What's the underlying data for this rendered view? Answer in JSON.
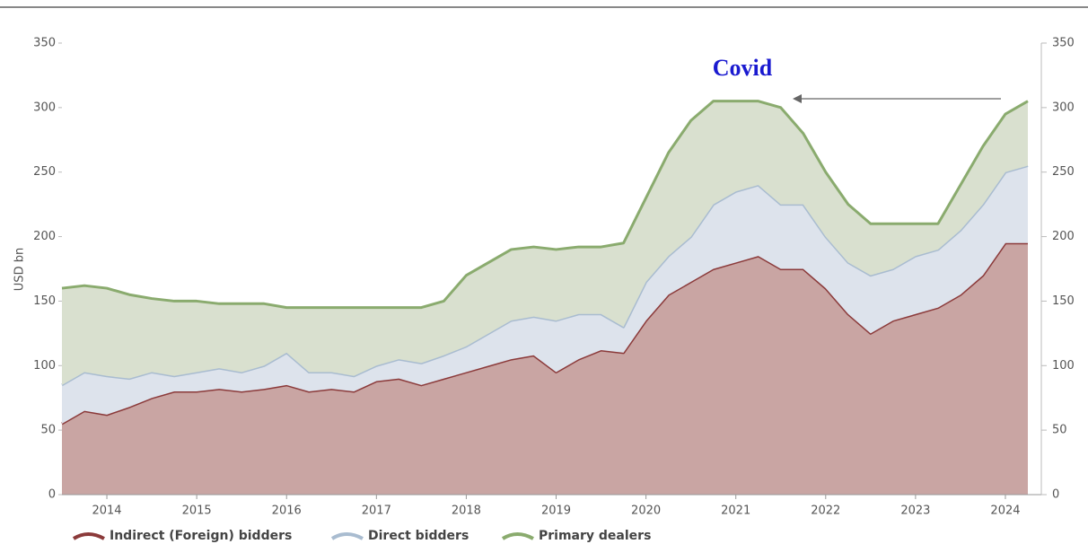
{
  "chart_data": {
    "type": "stacked_area",
    "ylabel": "USD bn",
    "annotation": "Covid",
    "x": [
      2013.5,
      2013.75,
      2014,
      2014.25,
      2014.5,
      2014.75,
      2015,
      2015.25,
      2015.5,
      2015.75,
      2016,
      2016.25,
      2016.5,
      2016.75,
      2017,
      2017.25,
      2017.5,
      2017.75,
      2018,
      2018.25,
      2018.5,
      2018.75,
      2019,
      2019.25,
      2019.5,
      2019.75,
      2020,
      2020.25,
      2020.5,
      2020.75,
      2021,
      2021.25,
      2021.5,
      2021.75,
      2022,
      2022.25,
      2022.5,
      2022.75,
      2023,
      2023.25,
      2023.5,
      2023.75,
      2024,
      2024.25
    ],
    "series": [
      {
        "name": "Indirect (Foreign) bidders",
        "color": "#8b3a3a",
        "fill": "#c9a5a3",
        "values": [
          55,
          65,
          62,
          68,
          75,
          80,
          80,
          82,
          80,
          82,
          85,
          80,
          82,
          80,
          88,
          90,
          85,
          90,
          95,
          100,
          105,
          108,
          95,
          105,
          112,
          110,
          135,
          155,
          165,
          175,
          180,
          185,
          175,
          175,
          160,
          140,
          125,
          135,
          140,
          145,
          155,
          170,
          195,
          195
        ]
      },
      {
        "name": "Direct bidders",
        "color": "#a9bcd0",
        "fill": "#dde3ec",
        "values": [
          30,
          30,
          30,
          22,
          20,
          12,
          15,
          16,
          15,
          18,
          25,
          15,
          13,
          12,
          12,
          15,
          17,
          18,
          20,
          25,
          30,
          30,
          40,
          35,
          28,
          20,
          30,
          30,
          35,
          50,
          55,
          55,
          50,
          50,
          40,
          40,
          45,
          40,
          45,
          45,
          50,
          55,
          55,
          60
        ]
      },
      {
        "name": "Primary dealers",
        "color": "#8aab6e",
        "fill": "#d9e0cf",
        "values": [
          75,
          67,
          68,
          65,
          57,
          58,
          55,
          50,
          53,
          48,
          35,
          50,
          50,
          53,
          45,
          40,
          43,
          42,
          55,
          55,
          55,
          54,
          55,
          52,
          52,
          65,
          65,
          80,
          90,
          80,
          70,
          65,
          75,
          55,
          50,
          45,
          40,
          35,
          25,
          20,
          35,
          45,
          45,
          50
        ]
      }
    ],
    "xlim": [
      2013.5,
      2024.25
    ],
    "xticks": [
      2014,
      2015,
      2016,
      2017,
      2018,
      2019,
      2020,
      2021,
      2022,
      2023,
      2024
    ],
    "ylim": [
      0,
      350
    ],
    "yticks": [
      0,
      50,
      100,
      150,
      200,
      250,
      300,
      350
    ],
    "y2lim": [
      0,
      350
    ],
    "y2ticks": [
      0,
      50,
      100,
      150,
      200,
      250,
      300,
      350
    ]
  }
}
